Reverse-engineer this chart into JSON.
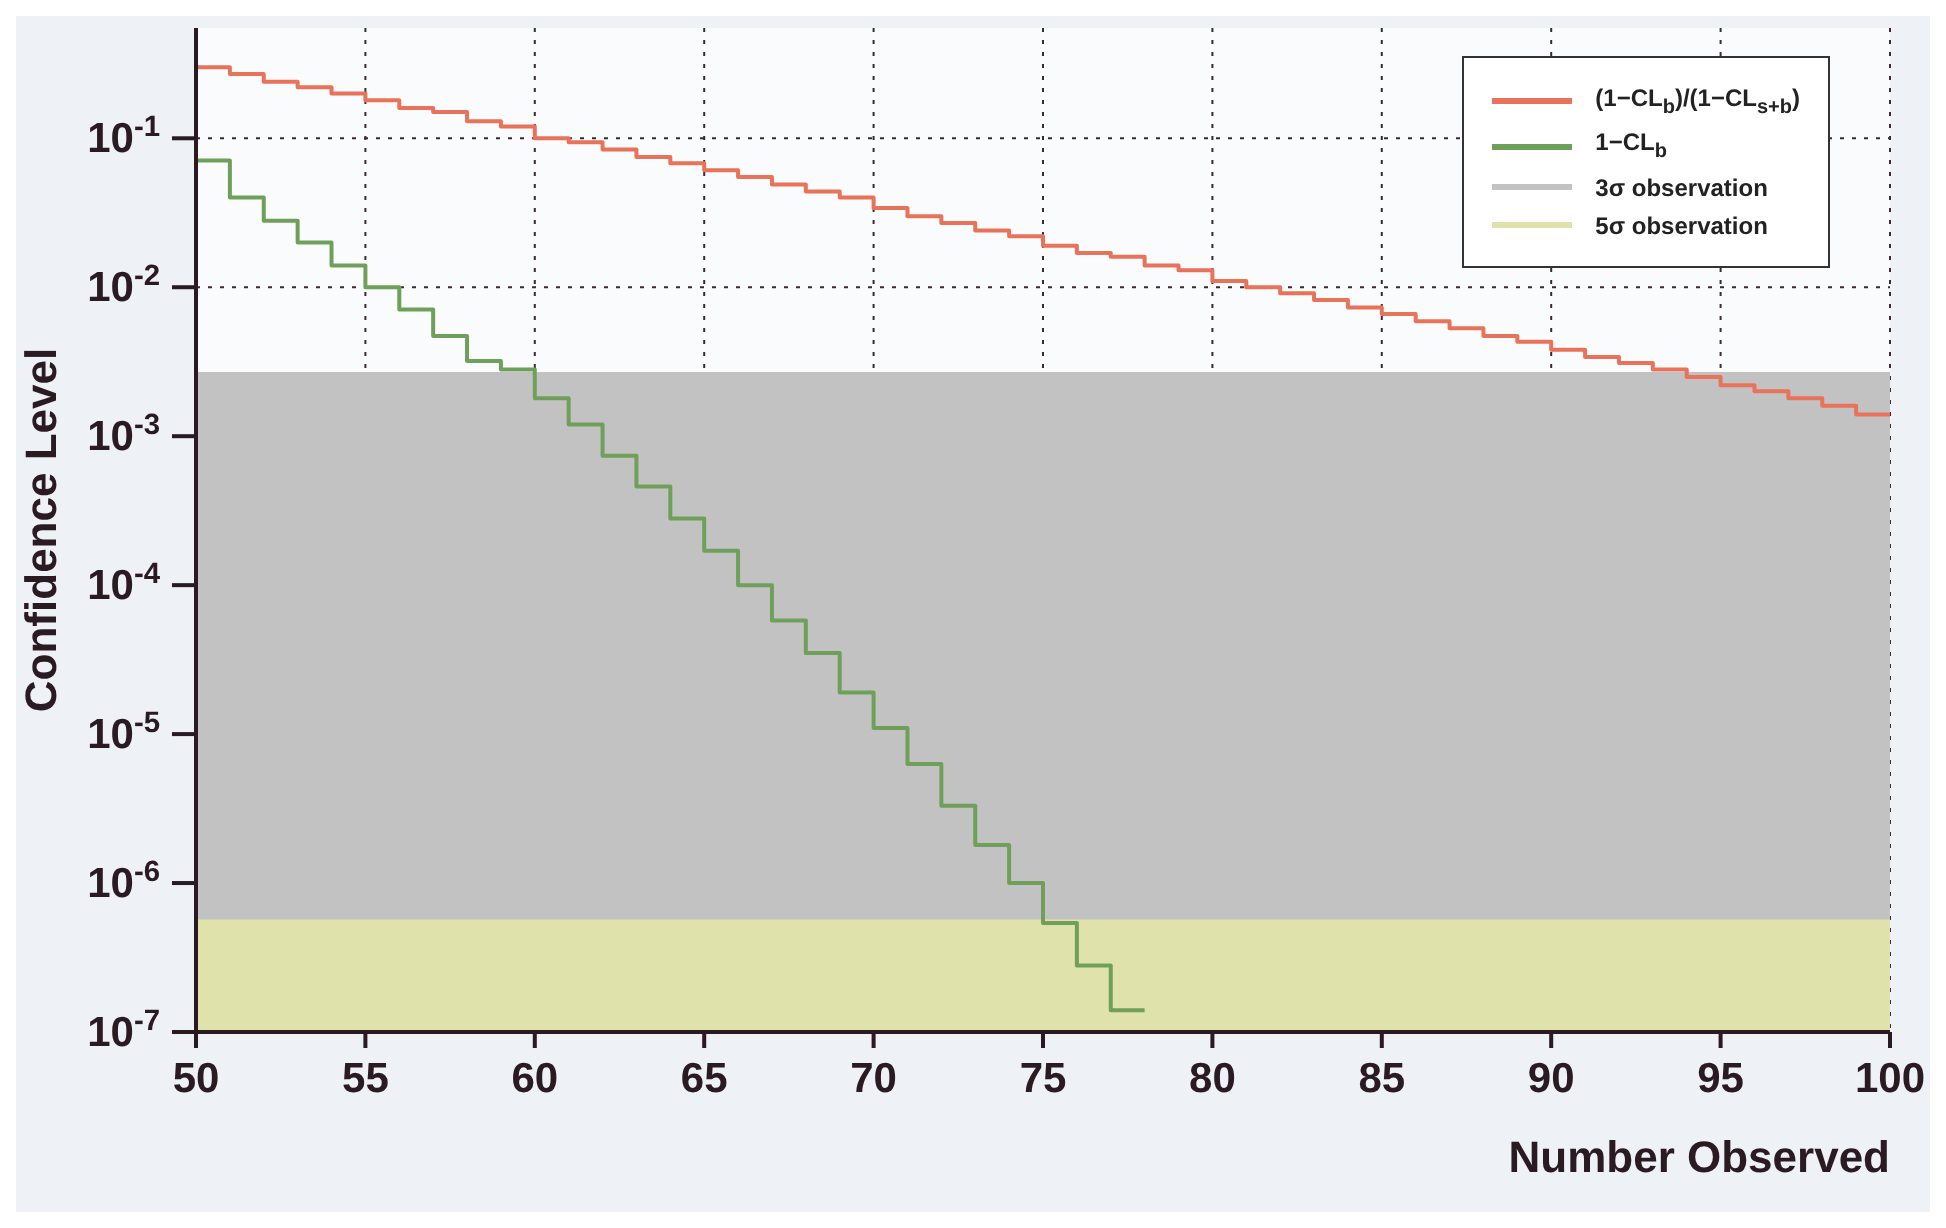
{
  "chart_data": {
    "type": "step",
    "xlabel": "Number Observed",
    "ylabel": "Confidence Level",
    "log": "y",
    "grid": true,
    "legend": "top right",
    "xlim": [
      50,
      100
    ],
    "xticks": [
      50,
      55,
      60,
      65,
      70,
      75,
      80,
      85,
      90,
      95,
      100
    ],
    "ylim": [
      1e-07,
      0.55
    ],
    "yticks": [
      {
        "value": 1e-07,
        "label": "10$^{-7}$"
      },
      {
        "value": 1e-06,
        "label": "10$^{-6}$"
      },
      {
        "value": 1e-05,
        "label": "10$^{-5}$"
      },
      {
        "value": 0.0001,
        "label": "10$^{-4}$"
      },
      {
        "value": 0.001,
        "label": "10$^{-3}$"
      },
      {
        "value": 0.01,
        "label": "10$^{-2}$"
      },
      {
        "value": 0.1,
        "label": "10$^{-1}$"
      }
    ],
    "bands": [
      {
        "axis": "y",
        "from": 1e-07,
        "to": 0.0027,
        "label": "3σ observation",
        "color": "#c2c2c2"
      },
      {
        "axis": "y",
        "from": 1e-07,
        "to": 5.7e-07,
        "label": "5σ observation",
        "color": "#dfe2ab"
      }
    ],
    "series": [
      {
        "name": "(1−CL$_{b}$)/(1−CL$_{s+b}$)",
        "color": "#e8735a",
        "x": [
          50,
          51,
          52,
          53,
          54,
          55,
          56,
          57,
          58,
          59,
          60,
          61,
          62,
          63,
          64,
          65,
          66,
          67,
          68,
          69,
          70,
          71,
          72,
          73,
          74,
          75,
          76,
          77,
          78,
          79,
          80,
          81,
          82,
          83,
          84,
          85,
          86,
          87,
          88,
          89,
          90,
          91,
          92,
          93,
          94,
          95,
          96,
          97,
          98,
          99,
          100
        ],
        "values": [
          0.3,
          0.27,
          0.24,
          0.22,
          0.2,
          0.18,
          0.16,
          0.15,
          0.13,
          0.12,
          0.1,
          0.094,
          0.084,
          0.075,
          0.068,
          0.061,
          0.055,
          0.049,
          0.044,
          0.04,
          0.034,
          0.03,
          0.027,
          0.024,
          0.022,
          0.019,
          0.017,
          0.016,
          0.014,
          0.013,
          0.011,
          0.01,
          0.0091,
          0.0082,
          0.0073,
          0.0066,
          0.0059,
          0.0053,
          0.0047,
          0.0043,
          0.0038,
          0.0034,
          0.0031,
          0.0028,
          0.0025,
          0.0022,
          0.002,
          0.0018,
          0.0016,
          0.0014,
          0.0014
        ]
      },
      {
        "name": "1−CL$_{b}$",
        "color": "#6fa05a",
        "x": [
          50,
          51,
          52,
          53,
          54,
          55,
          56,
          57,
          58,
          59,
          60,
          61,
          62,
          63,
          64,
          65,
          66,
          67,
          68,
          69,
          70,
          71,
          72,
          73,
          74,
          75,
          76,
          77,
          78
        ],
        "values": [
          0.071,
          0.04,
          0.028,
          0.02,
          0.014,
          0.01,
          0.0071,
          0.0047,
          0.0032,
          0.0028,
          0.0018,
          0.0012,
          0.00074,
          0.00046,
          0.00028,
          0.00017,
          0.0001,
          5.8e-05,
          3.5e-05,
          1.9e-05,
          1.1e-05,
          6.3e-06,
          3.3e-06,
          1.8e-06,
          1e-06,
          5.4e-07,
          2.8e-07,
          1.4e-07,
          1.4e-07
        ]
      }
    ]
  }
}
